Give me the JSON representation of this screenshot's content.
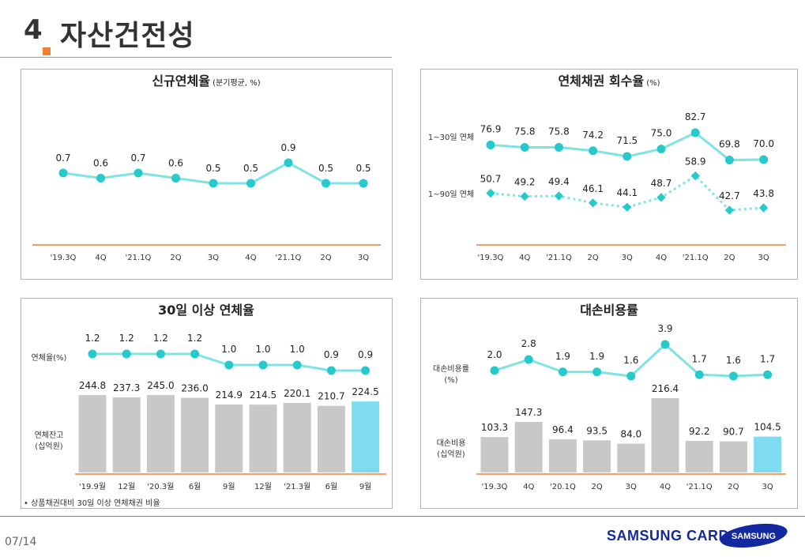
{
  "header": {
    "number": "4",
    "title": "자산건전성"
  },
  "colors": {
    "line": "#7fe3e3",
    "marker": "#26c9cc",
    "bar": "#c8c8c8",
    "bar_highlight": "#7fdcf0"
  },
  "footer": {
    "page": "07/14",
    "brand": "SAMSUNG CARD",
    "logo_text": "SAMSUNG"
  },
  "footnote": "• 상품채권대비 30일 이상 연체채권 비율",
  "chart_data": [
    {
      "type": "line",
      "title": "신규연체율",
      "subtitle": "(분기평균, %)",
      "categories": [
        "'19.3Q",
        "4Q",
        "'21.1Q",
        "2Q",
        "3Q",
        "4Q",
        "'21.1Q",
        "2Q",
        "3Q"
      ],
      "series": [
        {
          "values": [
            0.7,
            0.6,
            0.7,
            0.6,
            0.5,
            0.5,
            0.9,
            0.5,
            0.5
          ]
        }
      ]
    },
    {
      "type": "line",
      "title": "연체채권 회수율",
      "subtitle": "(%)",
      "categories": [
        "'19.3Q",
        "4Q",
        "'21.1Q",
        "2Q",
        "3Q",
        "4Q",
        "'21.1Q",
        "2Q",
        "3Q"
      ],
      "series": [
        {
          "name": "1~30일 연체",
          "values": [
            76.9,
            75.8,
            75.8,
            74.2,
            71.5,
            75.0,
            82.7,
            69.8,
            70.0
          ]
        },
        {
          "name": "1~90일 연체",
          "values": [
            50.7,
            49.2,
            49.4,
            46.1,
            44.1,
            48.7,
            58.9,
            42.7,
            43.8
          ]
        }
      ]
    },
    {
      "type": "bar",
      "title": "30일 이상 연체율",
      "categories": [
        "'19.9월",
        "12월",
        "'20.3월",
        "6월",
        "9월",
        "12월",
        "'21.3월",
        "6월",
        "9월"
      ],
      "line_label": "연체율(%)",
      "line_values": [
        1.2,
        1.2,
        1.2,
        1.2,
        1.0,
        1.0,
        1.0,
        0.9,
        0.9
      ],
      "bar_label": "연체잔고\n(십억원)",
      "bar_values": [
        244.8,
        237.3,
        245.0,
        236.0,
        214.9,
        214.5,
        220.1,
        210.7,
        224.5
      ]
    },
    {
      "type": "bar",
      "title": "대손비용률",
      "categories": [
        "'19.3Q",
        "4Q",
        "'20.1Q",
        "2Q",
        "3Q",
        "4Q",
        "'21.1Q",
        "2Q",
        "3Q"
      ],
      "line_label": "대손비용률\n(%)",
      "line_values": [
        2.0,
        2.8,
        1.9,
        1.9,
        1.6,
        3.9,
        1.7,
        1.6,
        1.7
      ],
      "bar_label": "대손비용\n(십억원)",
      "bar_values": [
        103.3,
        147.3,
        96.4,
        93.5,
        84.0,
        216.4,
        92.2,
        90.7,
        104.5
      ]
    }
  ]
}
